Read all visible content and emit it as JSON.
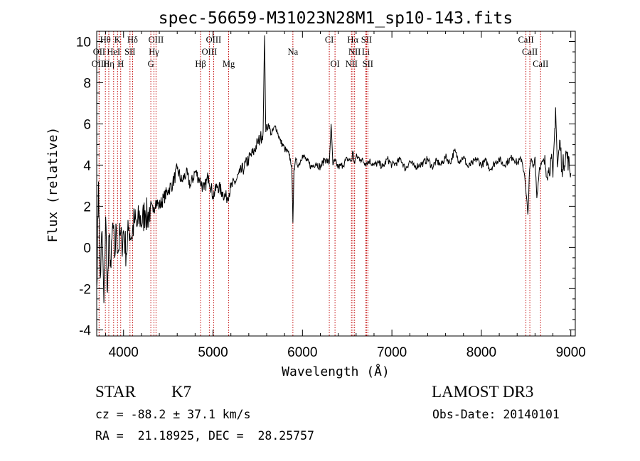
{
  "chart_data": {
    "type": "line",
    "title": "spec-56659-M31023N28M1_sp10-143.fits",
    "xlabel": "Wavelength (Å)",
    "ylabel": "Flux (relative)",
    "xlim": [
      3700,
      9050
    ],
    "ylim": [
      -4.3,
      10.5
    ],
    "xticks": [
      4000,
      5000,
      6000,
      7000,
      8000,
      9000
    ],
    "yticks": [
      -4,
      -2,
      0,
      2,
      4,
      6,
      8,
      10
    ],
    "series": [
      {
        "name": "flux",
        "x": [
          3700,
          3720,
          3740,
          3760,
          3780,
          3800,
          3820,
          3840,
          3860,
          3880,
          3900,
          3920,
          3940,
          3960,
          3980,
          4000,
          4030,
          4060,
          4090,
          4120,
          4150,
          4180,
          4210,
          4240,
          4270,
          4300,
          4330,
          4360,
          4400,
          4450,
          4500,
          4550,
          4600,
          4650,
          4700,
          4750,
          4800,
          4850,
          4900,
          4950,
          5000,
          5050,
          5100,
          5150,
          5200,
          5250,
          5300,
          5350,
          5400,
          5450,
          5500,
          5530,
          5560,
          5577,
          5590,
          5620,
          5650,
          5700,
          5750,
          5800,
          5850,
          5880,
          5893,
          5905,
          5920,
          5960,
          6000,
          6050,
          6100,
          6150,
          6200,
          6250,
          6300,
          6320,
          6340,
          6360,
          6400,
          6450,
          6500,
          6550,
          6563,
          6580,
          6600,
          6650,
          6700,
          6750,
          6800,
          6850,
          6900,
          6950,
          7000,
          7050,
          7100,
          7150,
          7200,
          7250,
          7300,
          7350,
          7400,
          7450,
          7500,
          7550,
          7600,
          7650,
          7700,
          7750,
          7800,
          7850,
          7900,
          7950,
          8000,
          8050,
          8100,
          8150,
          8200,
          8250,
          8300,
          8350,
          8400,
          8450,
          8480,
          8500,
          8520,
          8540,
          8560,
          8580,
          8600,
          8620,
          8650,
          8700,
          8750,
          8780,
          8800,
          8830,
          8850,
          8880,
          8900,
          8950,
          9000
        ],
        "values": [
          -2.0,
          3.2,
          -1.5,
          0.8,
          -2.7,
          1.5,
          -2.2,
          0.5,
          -1.0,
          1.2,
          -0.5,
          0.9,
          -0.2,
          0.6,
          0.2,
          0.8,
          -0.3,
          1.0,
          0.5,
          1.3,
          1.0,
          1.5,
          1.2,
          1.8,
          1.4,
          2.0,
          1.7,
          2.3,
          2.0,
          2.4,
          2.8,
          3.1,
          3.8,
          3.2,
          3.6,
          3.0,
          3.7,
          3.3,
          2.8,
          3.5,
          2.5,
          3.0,
          2.7,
          2.4,
          2.9,
          3.2,
          3.6,
          3.9,
          4.3,
          4.6,
          5.1,
          5.3,
          5.6,
          10.3,
          5.6,
          6.0,
          5.5,
          5.9,
          5.2,
          4.8,
          4.5,
          4.0,
          1.2,
          3.8,
          4.2,
          4.0,
          4.5,
          4.2,
          3.9,
          4.1,
          3.9,
          4.3,
          4.1,
          6.0,
          4.0,
          4.2,
          3.9,
          4.0,
          4.3,
          4.2,
          4.7,
          4.1,
          4.4,
          4.3,
          4.1,
          4.2,
          4.0,
          4.1,
          3.9,
          4.3,
          4.0,
          4.1,
          4.3,
          3.8,
          4.2,
          3.9,
          4.0,
          4.1,
          4.3,
          3.9,
          4.2,
          4.0,
          4.4,
          4.1,
          4.7,
          4.2,
          4.4,
          3.9,
          4.1,
          4.3,
          4.0,
          4.2,
          3.8,
          4.1,
          4.3,
          4.0,
          4.2,
          4.4,
          4.1,
          4.3,
          3.6,
          2.6,
          1.6,
          3.8,
          4.3,
          3.9,
          4.4,
          2.4,
          3.9,
          4.2,
          3.6,
          4.3,
          3.4,
          6.8,
          3.9,
          5.2,
          3.8,
          4.6,
          3.6
        ]
      }
    ],
    "line_markers": [
      {
        "label": "Hθ",
        "x": 3797,
        "row": 1
      },
      {
        "label": "K",
        "x": 3933,
        "row": 1
      },
      {
        "label": "Hδ",
        "x": 4101,
        "row": 1
      },
      {
        "label": "OIII",
        "x": 4363,
        "row": 1
      },
      {
        "label": "OIII",
        "x": 5007,
        "row": 1
      },
      {
        "label": "CI",
        "x": 6300,
        "row": 1
      },
      {
        "label": "Hα",
        "x": 6563,
        "row": 1
      },
      {
        "label": "SII",
        "x": 6716,
        "row": 1
      },
      {
        "label": "CaII",
        "x": 8498,
        "row": 1
      },
      {
        "label": "OII",
        "x": 3727,
        "row": 2
      },
      {
        "label": "HeI",
        "x": 3889,
        "row": 2
      },
      {
        "label": "SII",
        "x": 4072,
        "row": 2
      },
      {
        "label": "Hγ",
        "x": 4340,
        "row": 2
      },
      {
        "label": "OIII",
        "x": 4959,
        "row": 2
      },
      {
        "label": "Na",
        "x": 5893,
        "row": 2
      },
      {
        "label": "NII",
        "x": 6583,
        "row": 2
      },
      {
        "label": "Li",
        "x": 6708,
        "row": 2
      },
      {
        "label": "CaII",
        "x": 8542,
        "row": 2
      },
      {
        "label": "OIII",
        "x": 3727,
        "row": 3
      },
      {
        "label": "Hη",
        "x": 3835,
        "row": 3
      },
      {
        "label": "H",
        "x": 3968,
        "row": 3
      },
      {
        "label": "G",
        "x": 4305,
        "row": 3
      },
      {
        "label": "Hβ",
        "x": 4861,
        "row": 3
      },
      {
        "label": "Mg",
        "x": 5175,
        "row": 3
      },
      {
        "label": "OI",
        "x": 6364,
        "row": 3
      },
      {
        "label": "NII",
        "x": 6548,
        "row": 3
      },
      {
        "label": "SII",
        "x": 6731,
        "row": 3
      },
      {
        "label": "CaII",
        "x": 8662,
        "row": 3
      }
    ],
    "grid": false,
    "legend": "none"
  },
  "info": {
    "object_class": "STAR",
    "subclass": "K7",
    "survey": "LAMOST DR3",
    "redshift": "cz = -88.2 ± 37.1 km/s",
    "obs_date": "Obs-Date: 20140101",
    "coords": "RA =  21.18925, DEC =  28.25757"
  }
}
